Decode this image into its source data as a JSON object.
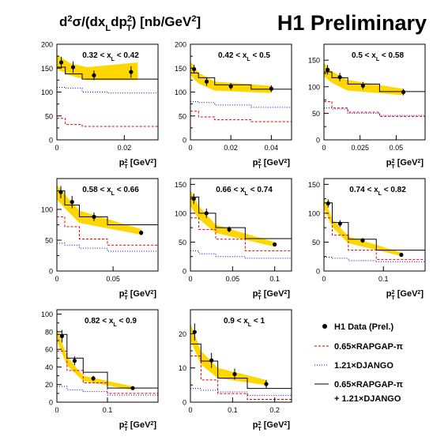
{
  "header": {
    "ylabel_parts": [
      "d",
      "2",
      "σ/(dx",
      "L",
      "dp",
      "2",
      "T",
      ") [nb/GeV",
      "2",
      "]"
    ],
    "collab": "H1 Preliminary"
  },
  "colors": {
    "band": "#ffd700",
    "rapgap": "#e00000",
    "django": "#0000cc",
    "sum": "#000000",
    "data": "#000000"
  },
  "common": {
    "xlabel_parts": [
      "p",
      "2",
      "T",
      " [GeV",
      "2",
      "]"
    ]
  },
  "legend": {
    "data": "H1 Data (Prel.)",
    "rapgap": "0.65×RAPGAP-π",
    "django": "1.21×DJANGO",
    "sum_line1": "0.65×RAPGAP-π",
    "sum_line2": "+ 1.21×DJANGO"
  },
  "chart_data": [
    {
      "type": "line",
      "label": "0.32 < x_L < 0.42",
      "xlim": [
        0,
        0.03
      ],
      "ylim": [
        0,
        200
      ],
      "xticks": [
        0,
        0.02
      ],
      "xtick_labels": [
        "0",
        "0.02"
      ],
      "yticks": [
        0,
        50,
        100,
        150,
        200
      ],
      "ytick_labels": [
        "0",
        "50",
        "100",
        "150",
        "200"
      ],
      "bins": [
        0,
        0.0025,
        0.0075,
        0.015,
        0.03
      ],
      "data": {
        "x": [
          0.0013,
          0.0048,
          0.011,
          0.022
        ],
        "y": [
          162,
          152,
          135,
          142
        ],
        "err": [
          12,
          12,
          10,
          12
        ]
      },
      "band": {
        "x": [
          0,
          0.004,
          0.009,
          0.024
        ],
        "lo": [
          148,
          135,
          125,
          125
        ],
        "hi": [
          178,
          160,
          152,
          162
        ]
      },
      "sum": [
        152,
        138,
        127,
        127
      ],
      "django": [
        110,
        108,
        100,
        98
      ],
      "rapgap": [
        45,
        32,
        28,
        28
      ]
    },
    {
      "type": "line",
      "label": "0.42 < x_L < 0.5",
      "xlim": [
        0,
        0.05
      ],
      "ylim": [
        0,
        200
      ],
      "xticks": [
        0,
        0.02,
        0.04
      ],
      "xtick_labels": [
        "0",
        "0.02",
        "0.04"
      ],
      "yticks": [
        0,
        50,
        100,
        150,
        200
      ],
      "ytick_labels": [
        "0",
        "50",
        "100",
        "150",
        "200"
      ],
      "bins": [
        0,
        0.004,
        0.012,
        0.03,
        0.05
      ],
      "data": {
        "x": [
          0.0018,
          0.008,
          0.02,
          0.04
        ],
        "y": [
          148,
          122,
          112,
          107
        ],
        "err": [
          9,
          9,
          7,
          7
        ]
      },
      "band": {
        "x": [
          0,
          0.004,
          0.012,
          0.04
        ],
        "lo": [
          135,
          118,
          103,
          98
        ],
        "hi": [
          165,
          140,
          122,
          113
        ]
      },
      "sum": [
        140,
        130,
        115,
        106
      ],
      "django": [
        80,
        78,
        73,
        68
      ],
      "rapgap": [
        60,
        48,
        42,
        38
      ]
    },
    {
      "type": "line",
      "label": "0.5 < x_L < 0.58",
      "xlim": [
        0,
        0.07
      ],
      "ylim": [
        0,
        180
      ],
      "xticks": [
        0,
        0.025,
        0.05
      ],
      "xtick_labels": [
        "0",
        "0.025",
        "0.05"
      ],
      "yticks": [
        0,
        50,
        100,
        150
      ],
      "ytick_labels": [
        "0",
        "50",
        "100",
        "150"
      ],
      "bins": [
        0,
        0.0055,
        0.0165,
        0.0385,
        0.07
      ],
      "data": {
        "x": [
          0.0025,
          0.011,
          0.027,
          0.055
        ],
        "y": [
          132,
          118,
          102,
          90
        ],
        "err": [
          9,
          8,
          7,
          6
        ]
      },
      "band": {
        "x": [
          0,
          0.005,
          0.016,
          0.055
        ],
        "lo": [
          120,
          108,
          93,
          84
        ],
        "hi": [
          145,
          130,
          113,
          96
        ]
      },
      "sum": [
        128,
        117,
        105,
        91
      ],
      "django": [
        60,
        58,
        50,
        46
      ],
      "rapgap": [
        72,
        60,
        52,
        44
      ]
    },
    {
      "type": "line",
      "label": "0.58 < x_L < 0.66",
      "xlim": [
        0,
        0.09
      ],
      "ylim": [
        0,
        150
      ],
      "xticks": [
        0,
        0.05
      ],
      "xtick_labels": [
        "0",
        "0.05"
      ],
      "yticks": [
        0,
        50,
        100
      ],
      "ytick_labels": [
        "0",
        "50",
        "100"
      ],
      "bins": [
        0,
        0.007,
        0.02,
        0.045,
        0.09
      ],
      "data": {
        "x": [
          0.0035,
          0.0135,
          0.033,
          0.075
        ],
        "y": [
          128,
          112,
          88,
          62
        ],
        "err": [
          10,
          10,
          7,
          4
        ]
      },
      "band": {
        "x": [
          0,
          0.007,
          0.02,
          0.075
        ],
        "lo": [
          116,
          102,
          78,
          59
        ],
        "hi": [
          140,
          124,
          98,
          68
        ]
      },
      "sum": [
        130,
        107,
        88,
        75
      ],
      "django": [
        45,
        42,
        37,
        32
      ],
      "rapgap": [
        88,
        72,
        52,
        42
      ]
    },
    {
      "type": "line",
      "label": "0.66 < x_L < 0.74",
      "xlim": [
        0,
        0.12
      ],
      "ylim": [
        0,
        160
      ],
      "xticks": [
        0,
        0.05,
        0.1
      ],
      "xtick_labels": [
        "0",
        "0.05",
        "0.1"
      ],
      "yticks": [
        0,
        50,
        100,
        150
      ],
      "ytick_labels": [
        "0",
        "50",
        "100",
        "150"
      ],
      "bins": [
        0,
        0.01,
        0.03,
        0.065,
        0.12
      ],
      "data": {
        "x": [
          0.004,
          0.019,
          0.046,
          0.1
        ],
        "y": [
          125,
          100,
          72,
          46
        ],
        "err": [
          9,
          8,
          5,
          3
        ]
      },
      "band": {
        "x": [
          0,
          0.01,
          0.03,
          0.1
        ],
        "lo": [
          112,
          90,
          66,
          42
        ],
        "hi": [
          140,
          112,
          80,
          50
        ]
      },
      "sum": [
        128,
        100,
        75,
        56
      ],
      "django": [
        35,
        30,
        25,
        22
      ],
      "rapgap": [
        92,
        72,
        55,
        35
      ]
    },
    {
      "type": "line",
      "label": "0.74 < x_L < 0.82",
      "xlim": [
        0,
        0.17
      ],
      "ylim": [
        0,
        160
      ],
      "xticks": [
        0,
        0.1
      ],
      "xtick_labels": [
        "0",
        "0.1"
      ],
      "yticks": [
        0,
        50,
        100,
        150
      ],
      "ytick_labels": [
        "0",
        "50",
        "100",
        "150"
      ],
      "bins": [
        0,
        0.014,
        0.041,
        0.088,
        0.17
      ],
      "data": {
        "x": [
          0.007,
          0.027,
          0.065,
          0.13
        ],
        "y": [
          117,
          82,
          53,
          28
        ],
        "err": [
          7,
          6,
          4,
          2
        ]
      },
      "band": {
        "x": [
          0,
          0.014,
          0.041,
          0.13
        ],
        "lo": [
          108,
          76,
          48,
          26
        ],
        "hi": [
          128,
          90,
          60,
          32
        ]
      },
      "sum": [
        118,
        84,
        55,
        36
      ],
      "django": [
        24,
        22,
        18,
        16
      ],
      "rapgap": [
        92,
        62,
        36,
        20
      ]
    },
    {
      "type": "line",
      "label": "0.82 < x_L < 0.9",
      "xlim": [
        0,
        0.2
      ],
      "ylim": [
        0,
        105
      ],
      "xticks": [
        0,
        0.1
      ],
      "xtick_labels": [
        "0",
        "0.1"
      ],
      "yticks": [
        0,
        20,
        40,
        60,
        80,
        100
      ],
      "ytick_labels": [
        "0",
        "20",
        "40",
        "60",
        "80",
        "100"
      ],
      "bins": [
        0,
        0.02,
        0.052,
        0.1,
        0.2
      ],
      "data": {
        "x": [
          0.01,
          0.035,
          0.072,
          0.15
        ],
        "y": [
          75,
          47,
          27,
          16
        ],
        "err": [
          7,
          5,
          3,
          2
        ]
      },
      "band": {
        "x": [
          0,
          0.02,
          0.052,
          0.15
        ],
        "lo": [
          70,
          42,
          24,
          14
        ],
        "hi": [
          84,
          52,
          30,
          18
        ]
      },
      "sum": [
        77,
        50,
        34,
        16
      ],
      "django": [
        18,
        14,
        12,
        8
      ],
      "rapgap": [
        58,
        36,
        22,
        10
      ]
    },
    {
      "type": "line",
      "label": "0.9 < x_L < 1",
      "xlim": [
        0,
        0.24
      ],
      "ylim": [
        0,
        27
      ],
      "xticks": [
        0,
        0.1,
        0.2
      ],
      "xtick_labels": [
        "0",
        "0.1",
        "0.2"
      ],
      "yticks": [
        0,
        10,
        20
      ],
      "ytick_labels": [
        "0",
        "10",
        "20"
      ],
      "bins": [
        0,
        0.025,
        0.065,
        0.135,
        0.24
      ],
      "data": {
        "x": [
          0.01,
          0.05,
          0.105,
          0.18
        ],
        "y": [
          20.5,
          12.2,
          8.2,
          5.3
        ],
        "err": [
          2.5,
          2.2,
          1.6,
          1.2
        ]
      },
      "band": {
        "x": [
          0,
          0.025,
          0.065,
          0.18
        ],
        "lo": [
          18,
          11,
          7,
          5
        ],
        "hi": [
          23,
          15,
          10,
          6.5
        ]
      },
      "sum": [
        17,
        12,
        7,
        4
      ],
      "django": [
        4,
        3.5,
        3,
        2
      ],
      "rapgap": [
        13.5,
        6.5,
        2.5,
        0.8
      ]
    }
  ]
}
